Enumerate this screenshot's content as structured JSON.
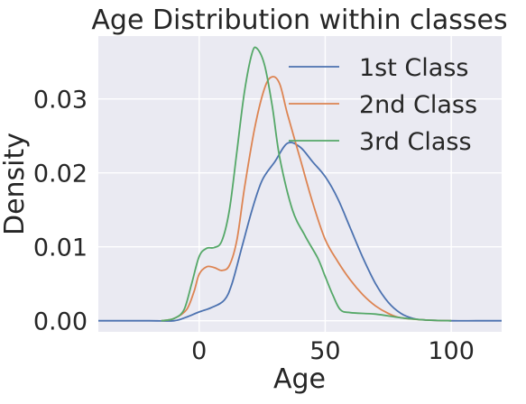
{
  "chart_data": {
    "type": "line",
    "title": "Age Distribution within classes",
    "xlabel": "Age",
    "ylabel": "Density",
    "xlim": [
      -40,
      120
    ],
    "ylim": [
      -0.0015,
      0.0385
    ],
    "x_ticks": [
      0,
      50,
      100
    ],
    "x_tick_labels": [
      "0",
      "50",
      "100"
    ],
    "y_ticks": [
      0.0,
      0.01,
      0.02,
      0.03
    ],
    "y_tick_labels": [
      "0.00",
      "0.01",
      "0.02",
      "0.03"
    ],
    "grid": true,
    "legend_position": "top-right",
    "series": [
      {
        "name": "1st Class",
        "color": "#4c72b0",
        "points": [
          [
            -40,
            0
          ],
          [
            -20,
            0
          ],
          [
            -10,
            0
          ],
          [
            -5,
            0.0005
          ],
          [
            0,
            0.0012
          ],
          [
            5,
            0.0018
          ],
          [
            10,
            0.0028
          ],
          [
            13,
            0.005
          ],
          [
            17,
            0.01
          ],
          [
            21,
            0.015
          ],
          [
            25,
            0.019
          ],
          [
            30,
            0.0215
          ],
          [
            35,
            0.024
          ],
          [
            40,
            0.0235
          ],
          [
            45,
            0.0215
          ],
          [
            50,
            0.0195
          ],
          [
            55,
            0.0165
          ],
          [
            60,
            0.0125
          ],
          [
            65,
            0.0085
          ],
          [
            70,
            0.005
          ],
          [
            75,
            0.0025
          ],
          [
            80,
            0.001
          ],
          [
            85,
            0.0003
          ],
          [
            90,
            0.0001
          ],
          [
            100,
            0
          ],
          [
            110,
            0
          ],
          [
            120,
            0
          ]
        ]
      },
      {
        "name": "2nd Class",
        "color": "#dd8452",
        "points": [
          [
            -15,
            0
          ],
          [
            -10,
            0.0003
          ],
          [
            -5,
            0.0015
          ],
          [
            -2,
            0.004
          ],
          [
            0,
            0.0063
          ],
          [
            3,
            0.0073
          ],
          [
            6,
            0.0072
          ],
          [
            9,
            0.0068
          ],
          [
            12,
            0.0075
          ],
          [
            15,
            0.011
          ],
          [
            18,
            0.018
          ],
          [
            22,
            0.026
          ],
          [
            26,
            0.0315
          ],
          [
            29,
            0.033
          ],
          [
            32,
            0.032
          ],
          [
            35,
            0.028
          ],
          [
            40,
            0.022
          ],
          [
            45,
            0.016
          ],
          [
            50,
            0.011
          ],
          [
            55,
            0.008
          ],
          [
            60,
            0.0055
          ],
          [
            65,
            0.0035
          ],
          [
            70,
            0.002
          ],
          [
            75,
            0.001
          ],
          [
            80,
            0.0004
          ],
          [
            90,
            0.0001
          ],
          [
            100,
            0
          ]
        ]
      },
      {
        "name": "3rd Class",
        "color": "#55a868",
        "points": [
          [
            -15,
            0
          ],
          [
            -10,
            0.0003
          ],
          [
            -6,
            0.0015
          ],
          [
            -3,
            0.005
          ],
          [
            0,
            0.0087
          ],
          [
            3,
            0.0098
          ],
          [
            6,
            0.0099
          ],
          [
            9,
            0.0108
          ],
          [
            12,
            0.015
          ],
          [
            15,
            0.023
          ],
          [
            18,
            0.031
          ],
          [
            21,
            0.0362
          ],
          [
            23,
            0.0368
          ],
          [
            26,
            0.0345
          ],
          [
            29,
            0.029
          ],
          [
            32,
            0.022
          ],
          [
            37,
            0.015
          ],
          [
            42,
            0.0115
          ],
          [
            47,
            0.0085
          ],
          [
            50,
            0.006
          ],
          [
            53,
            0.0035
          ],
          [
            56,
            0.0015
          ],
          [
            60,
            0.0011
          ],
          [
            70,
            0.0009
          ],
          [
            80,
            0.0004
          ],
          [
            90,
            0.0001
          ],
          [
            100,
            0
          ]
        ]
      }
    ]
  }
}
